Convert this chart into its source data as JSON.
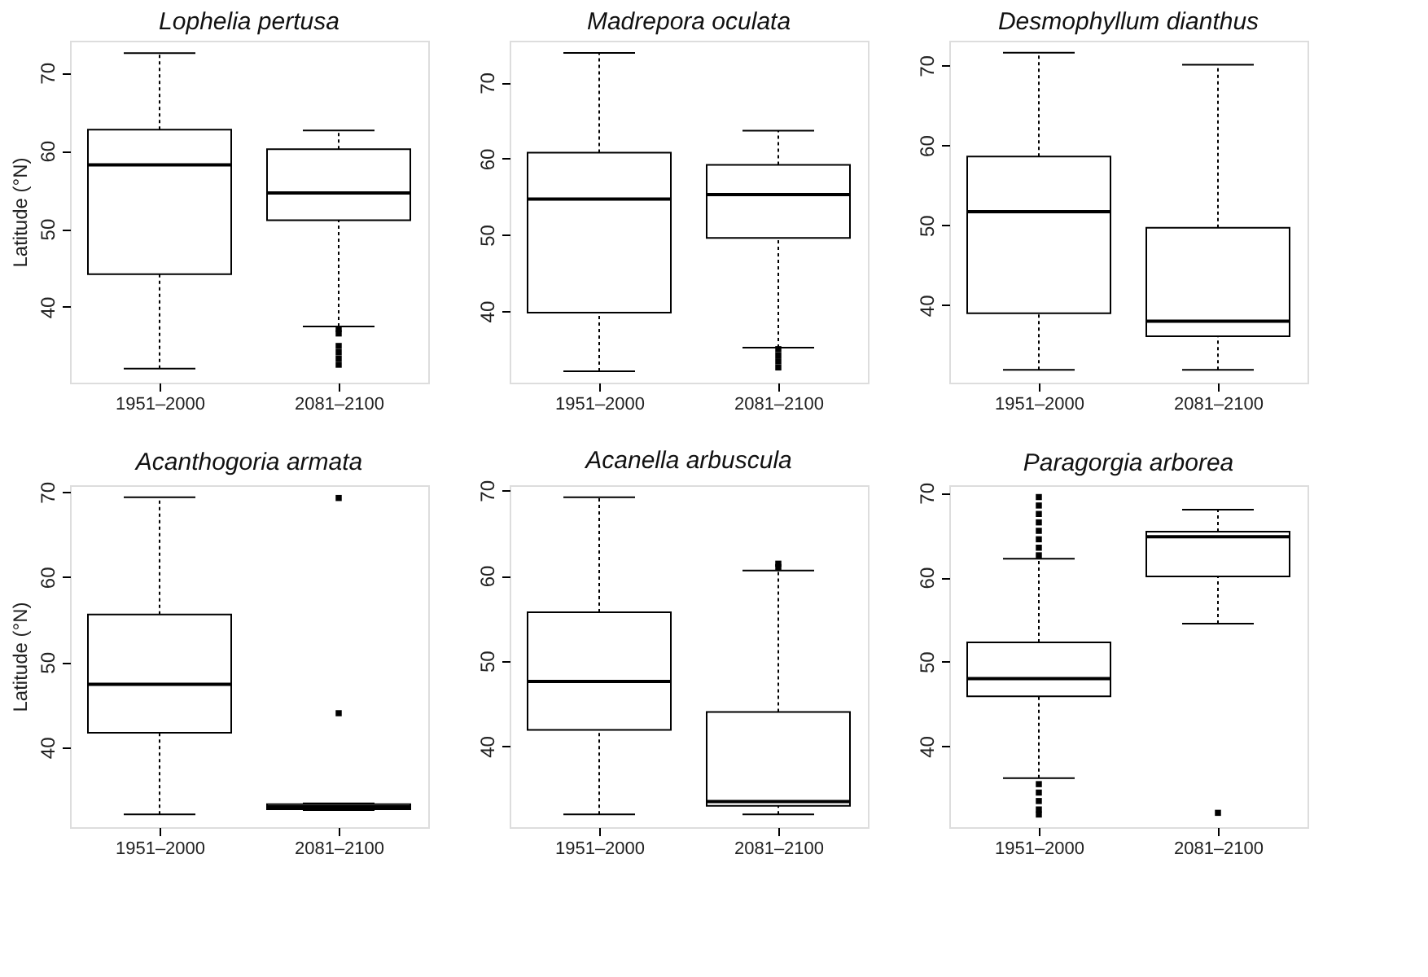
{
  "chart_data": [
    {
      "type": "box",
      "title": "Lophelia pertusa",
      "ylabel": "Latitude (°N)",
      "categories": [
        "1951–2000",
        "2081–2100"
      ],
      "ylim": [
        30.3,
        74.1
      ],
      "yticks": [
        40,
        50,
        60,
        70
      ],
      "grid": false,
      "boxes": [
        {
          "low": 32.1,
          "q1": 44.2,
          "median": 58.2,
          "q3": 62.7,
          "high": 72.5
        },
        {
          "low": 37.5,
          "q1": 51.1,
          "median": 54.6,
          "q3": 60.2,
          "high": 62.6,
          "outliers": [
            37.2,
            36.6,
            35.0,
            34.2,
            33.4,
            32.6
          ]
        }
      ]
    },
    {
      "type": "box",
      "title": "Madrepora oculata",
      "categories": [
        "1951–2000",
        "2081–2100"
      ],
      "ylim": [
        30.6,
        75.5
      ],
      "yticks": [
        40,
        50,
        60,
        70
      ],
      "grid": false,
      "boxes": [
        {
          "low": 32.1,
          "q1": 39.8,
          "median": 54.7,
          "q3": 60.8,
          "high": 73.9
        },
        {
          "low": 35.2,
          "q1": 49.6,
          "median": 55.3,
          "q3": 59.2,
          "high": 63.7,
          "outliers": [
            35.0,
            34.2,
            33.4,
            32.6
          ]
        }
      ]
    },
    {
      "type": "box",
      "title": "Desmophyllum dianthus",
      "categories": [
        "1951–2000",
        "2081–2100"
      ],
      "ylim": [
        30.3,
        73.1
      ],
      "yticks": [
        40,
        50,
        60,
        70
      ],
      "grid": false,
      "boxes": [
        {
          "low": 31.9,
          "q1": 39.0,
          "median": 51.7,
          "q3": 58.6,
          "high": 71.6
        },
        {
          "low": 31.9,
          "q1": 36.1,
          "median": 38.0,
          "q3": 49.7,
          "high": 70.1
        }
      ]
    },
    {
      "type": "box",
      "title": "Acanthogoria armata",
      "ylabel": "Latitude (°N)",
      "categories": [
        "1951–2000",
        "2081–2100"
      ],
      "ylim": [
        30.6,
        70.8
      ],
      "yticks": [
        40,
        50,
        60,
        70
      ],
      "grid": false,
      "boxes": [
        {
          "low": 32.1,
          "q1": 41.7,
          "median": 47.4,
          "q3": 55.6,
          "high": 69.4
        },
        {
          "low": 32.6,
          "q1": 32.7,
          "median": 33.0,
          "q3": 33.3,
          "high": 33.4,
          "outliers": [
            44.0,
            69.3
          ]
        }
      ]
    },
    {
      "type": "box",
      "title": "Acanella arbuscula",
      "categories": [
        "1951–2000",
        "2081–2100"
      ],
      "ylim": [
        30.5,
        70.6
      ],
      "yticks": [
        40,
        50,
        60,
        70
      ],
      "grid": false,
      "boxes": [
        {
          "low": 32.0,
          "q1": 41.9,
          "median": 47.6,
          "q3": 55.7,
          "high": 69.2
        },
        {
          "low": 32.0,
          "q1": 33.0,
          "median": 33.5,
          "q3": 44.0,
          "high": 60.6,
          "outliers": [
            61.0,
            61.4
          ]
        }
      ]
    },
    {
      "type": "box",
      "title": "Paragorgia arborea",
      "categories": [
        "1951–2000",
        "2081–2100"
      ],
      "ylim": [
        30.4,
        70.9
      ],
      "yticks": [
        40,
        50,
        60,
        70
      ],
      "grid": false,
      "boxes": [
        {
          "low": 36.2,
          "q1": 45.9,
          "median": 48.0,
          "q3": 52.3,
          "high": 62.2,
          "outliers": [
            62.6,
            63.5,
            64.5,
            65.5,
            66.5,
            67.5,
            68.5,
            69.5,
            35.5,
            34.5,
            33.5,
            32.5,
            31.9
          ]
        },
        {
          "low": 54.5,
          "q1": 60.1,
          "median": 64.8,
          "q3": 65.4,
          "high": 68.0,
          "outliers": [
            32.1
          ]
        }
      ]
    }
  ]
}
